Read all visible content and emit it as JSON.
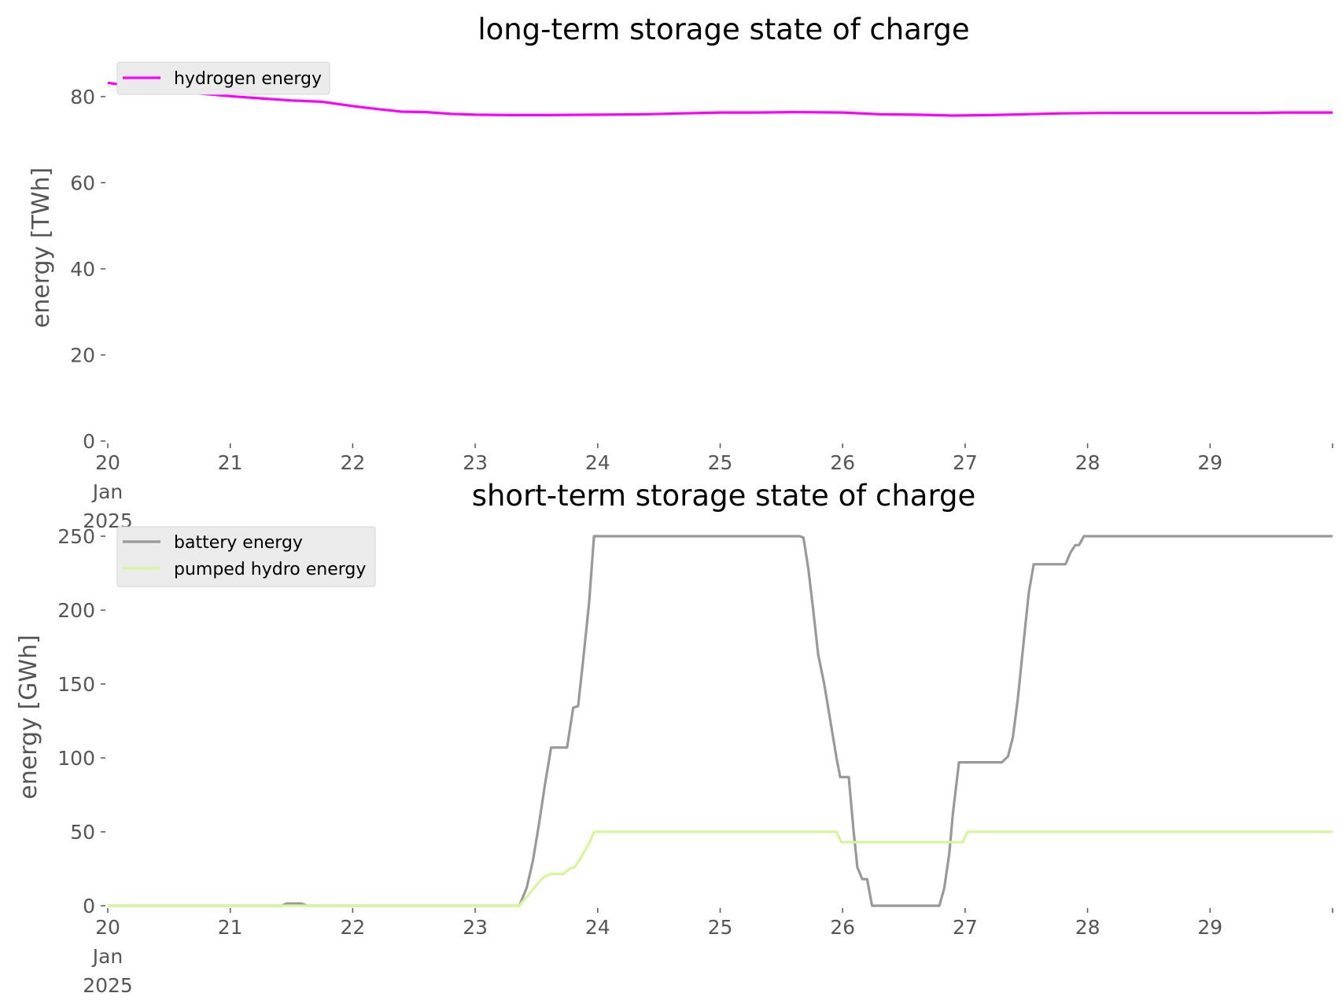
{
  "chart_data": [
    {
      "type": "line",
      "title": "long-term storage state of charge",
      "xlabel": "",
      "ylabel": "energy [TWh]",
      "xlim": [
        "2025-01-20",
        "2025-01-30"
      ],
      "ylim": [
        0,
        86
      ],
      "yticks": [
        0,
        20,
        40,
        60,
        80
      ],
      "xticks": [
        {
          "day": 0,
          "label": "20",
          "sub1": "Jan",
          "sub2": "2025"
        },
        {
          "day": 1,
          "label": "21"
        },
        {
          "day": 2,
          "label": "22"
        },
        {
          "day": 3,
          "label": "23"
        },
        {
          "day": 4,
          "label": "24"
        },
        {
          "day": 5,
          "label": "25"
        },
        {
          "day": 6,
          "label": "26"
        },
        {
          "day": 7,
          "label": "27"
        },
        {
          "day": 8,
          "label": "28"
        },
        {
          "day": 9,
          "label": "29"
        }
      ],
      "grid": false,
      "legend_position": "top-left",
      "series": [
        {
          "name": "hydrogen energy",
          "color": "#ff00ff",
          "points": [
            [
              0,
              83.2
            ],
            [
              0.25,
              82.2
            ],
            [
              0.5,
              81.4
            ],
            [
              0.75,
              80.7
            ],
            [
              1.0,
              80.1
            ],
            [
              1.25,
              79.6
            ],
            [
              1.5,
              79.1
            ],
            [
              1.75,
              78.8
            ],
            [
              2.0,
              77.8
            ],
            [
              2.2,
              77.1
            ],
            [
              2.4,
              76.5
            ],
            [
              2.6,
              76.4
            ],
            [
              2.8,
              76.0
            ],
            [
              3.0,
              75.8
            ],
            [
              3.3,
              75.7
            ],
            [
              3.6,
              75.7
            ],
            [
              4.0,
              75.8
            ],
            [
              4.4,
              75.9
            ],
            [
              4.7,
              76.1
            ],
            [
              5.0,
              76.3
            ],
            [
              5.3,
              76.3
            ],
            [
              5.6,
              76.4
            ],
            [
              6.0,
              76.3
            ],
            [
              6.3,
              75.9
            ],
            [
              6.6,
              75.8
            ],
            [
              6.9,
              75.6
            ],
            [
              7.2,
              75.7
            ],
            [
              7.5,
              75.9
            ],
            [
              7.8,
              76.1
            ],
            [
              8.1,
              76.2
            ],
            [
              8.5,
              76.2
            ],
            [
              9.0,
              76.2
            ],
            [
              9.4,
              76.2
            ],
            [
              9.6,
              76.3
            ],
            [
              10.0,
              76.3
            ]
          ]
        }
      ]
    },
    {
      "type": "line",
      "title": "short-term storage state of charge",
      "xlabel": "",
      "ylabel": "energy [GWh]",
      "xlim": [
        "2025-01-20",
        "2025-01-30"
      ],
      "ylim": [
        0,
        250
      ],
      "yticks": [
        0,
        50,
        100,
        150,
        200,
        250
      ],
      "xticks": [
        {
          "day": 0,
          "label": "20",
          "sub1": "Jan",
          "sub2": "2025"
        },
        {
          "day": 1,
          "label": "21"
        },
        {
          "day": 2,
          "label": "22"
        },
        {
          "day": 3,
          "label": "23"
        },
        {
          "day": 4,
          "label": "24"
        },
        {
          "day": 5,
          "label": "25"
        },
        {
          "day": 6,
          "label": "26"
        },
        {
          "day": 7,
          "label": "27"
        },
        {
          "day": 8,
          "label": "28"
        },
        {
          "day": 9,
          "label": "29"
        }
      ],
      "grid": false,
      "legend_position": "top-left",
      "series": [
        {
          "name": "battery energy",
          "color": "#999999",
          "points": [
            [
              0,
              0
            ],
            [
              1.42,
              0
            ],
            [
              1.46,
              1.5
            ],
            [
              1.58,
              1.5
            ],
            [
              1.63,
              0
            ],
            [
              3.36,
              0
            ],
            [
              3.42,
              12
            ],
            [
              3.47,
              30
            ],
            [
              3.52,
              55
            ],
            [
              3.57,
              82
            ],
            [
              3.62,
              107
            ],
            [
              3.75,
              107
            ],
            [
              3.8,
              134
            ],
            [
              3.84,
              135
            ],
            [
              3.88,
              165
            ],
            [
              3.93,
              205
            ],
            [
              3.97,
              250
            ],
            [
              5.65,
              250
            ],
            [
              5.68,
              249
            ],
            [
              5.72,
              228
            ],
            [
              5.76,
              200
            ],
            [
              5.8,
              170
            ],
            [
              5.85,
              150
            ],
            [
              5.9,
              125
            ],
            [
              5.95,
              100
            ],
            [
              5.98,
              87
            ],
            [
              6.05,
              87
            ],
            [
              6.09,
              50
            ],
            [
              6.12,
              26
            ],
            [
              6.16,
              18
            ],
            [
              6.2,
              18
            ],
            [
              6.24,
              0
            ],
            [
              6.79,
              0
            ],
            [
              6.83,
              12
            ],
            [
              6.87,
              35
            ],
            [
              6.9,
              62
            ],
            [
              6.95,
              97
            ],
            [
              7.3,
              97
            ],
            [
              7.35,
              101
            ],
            [
              7.39,
              114
            ],
            [
              7.43,
              140
            ],
            [
              7.48,
              180
            ],
            [
              7.52,
              212
            ],
            [
              7.56,
              231
            ],
            [
              7.82,
              231
            ],
            [
              7.86,
              239
            ],
            [
              7.9,
              244
            ],
            [
              7.93,
              244
            ],
            [
              7.97,
              250
            ],
            [
              10.0,
              250
            ]
          ]
        },
        {
          "name": "pumped hydro energy",
          "color": "#d6f59c",
          "points": [
            [
              0,
              0
            ],
            [
              3.36,
              0
            ],
            [
              3.42,
              6
            ],
            [
              3.47,
              11
            ],
            [
              3.52,
              16
            ],
            [
              3.57,
              20
            ],
            [
              3.62,
              21.5
            ],
            [
              3.72,
              21.5
            ],
            [
              3.77,
              25
            ],
            [
              3.81,
              26
            ],
            [
              3.86,
              32
            ],
            [
              3.9,
              38
            ],
            [
              3.94,
              44
            ],
            [
              3.97,
              50
            ],
            [
              5.95,
              50
            ],
            [
              5.99,
              43
            ],
            [
              6.98,
              43
            ],
            [
              7.02,
              50
            ],
            [
              10.0,
              50
            ]
          ]
        }
      ]
    }
  ]
}
